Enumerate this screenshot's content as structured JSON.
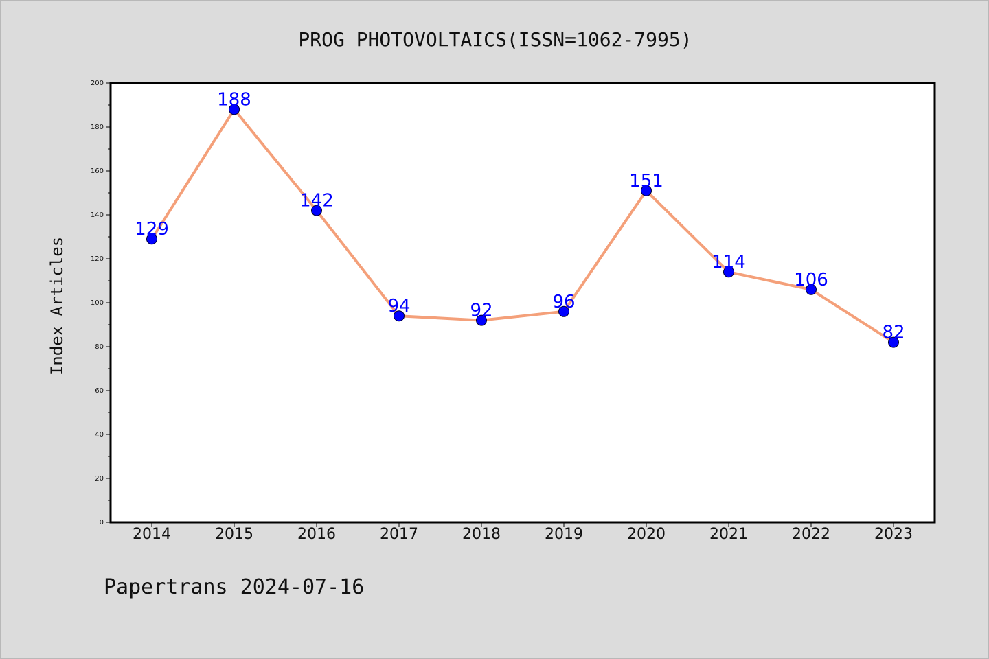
{
  "chart_data": {
    "type": "line",
    "title": "PROG PHOTOVOLTAICS(ISSN=1062-7995)",
    "xlabel": "",
    "ylabel": "Index Articles",
    "x": [
      "2014",
      "2015",
      "2016",
      "2017",
      "2018",
      "2019",
      "2020",
      "2021",
      "2022",
      "2023"
    ],
    "series": [
      {
        "values": [
          129,
          188,
          142,
          94,
          92,
          96,
          151,
          114,
          106,
          82
        ]
      }
    ],
    "ylim": [
      0,
      200
    ],
    "yticks": [
      0,
      20,
      40,
      60,
      80,
      100,
      120,
      140,
      160,
      180,
      200
    ],
    "grid": false,
    "line_color": "#f4a07a",
    "marker_color": "#0000ff",
    "label_color": "#0000ff"
  },
  "footer": {
    "text": "Papertrans 2024-07-16"
  }
}
